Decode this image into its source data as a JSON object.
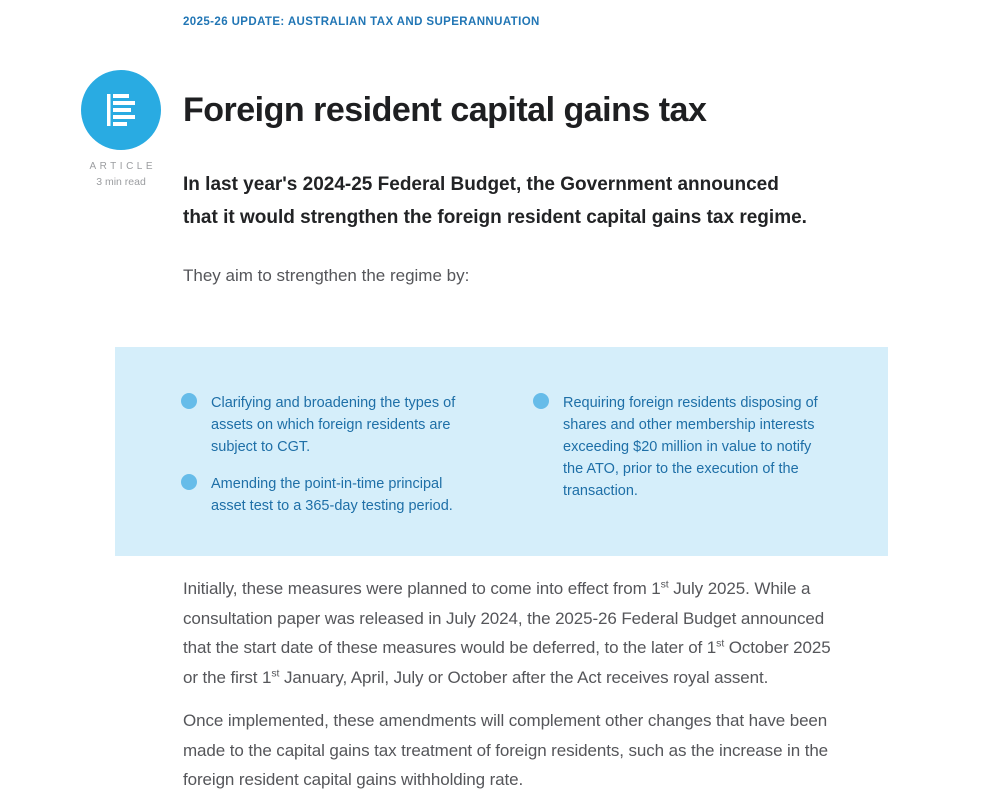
{
  "eyebrow": "2025-26 UPDATE: AUSTRALIAN TAX AND SUPERANNUATION",
  "badge": {
    "type_label": "ARTICLE",
    "read_time": "3 min read",
    "circle_color": "#29abe2"
  },
  "article": {
    "title": "Foreign resident capital gains tax",
    "intro": "In last year's 2024-25 Federal Budget, the Government announced that it would strengthen the foreign resident capital gains tax regime.",
    "lead_in": "They aim to strengthen the regime by:",
    "highlight_box": {
      "background_color": "#d5eefa",
      "bullet_dot_color": "#66bce9",
      "text_color": "#1e6fa7",
      "columns": [
        {
          "bullets": [
            "Clarifying and broadening the types of assets on which foreign residents are subject to CGT.",
            "Amending the point-in-time principal asset test to a 365-day testing period."
          ]
        },
        {
          "bullets": [
            "Requiring foreign residents disposing of shares and other membership interests exceeding $20 million in value to notify the ATO, prior to the execution of the transaction."
          ]
        }
      ]
    },
    "paragraphs": [
      {
        "segments": [
          {
            "t": "Initially, these measures were planned to come into effect from 1"
          },
          {
            "sup": "st"
          },
          {
            "t": " July 2025. While a consultation paper was released in July 2024, the 2025-26 Federal Budget announced that the start date of these measures would be deferred, to the later of 1"
          },
          {
            "sup": "st"
          },
          {
            "t": " October 2025 or the first 1"
          },
          {
            "sup": "st"
          },
          {
            "t": " January, April, July or October after the Act receives royal assent."
          }
        ]
      },
      {
        "segments": [
          {
            "t": "Once implemented, these amendments will complement other changes that have been made to the capital gains tax treatment of foreign residents, such as the increase in the foreign resident capital gains withholding rate."
          }
        ]
      }
    ]
  },
  "colors": {
    "eyebrow_blue": "#2176b5",
    "accent_blue": "#29abe2",
    "body_gray": "#55565a",
    "heading_black": "#1e1f21"
  }
}
